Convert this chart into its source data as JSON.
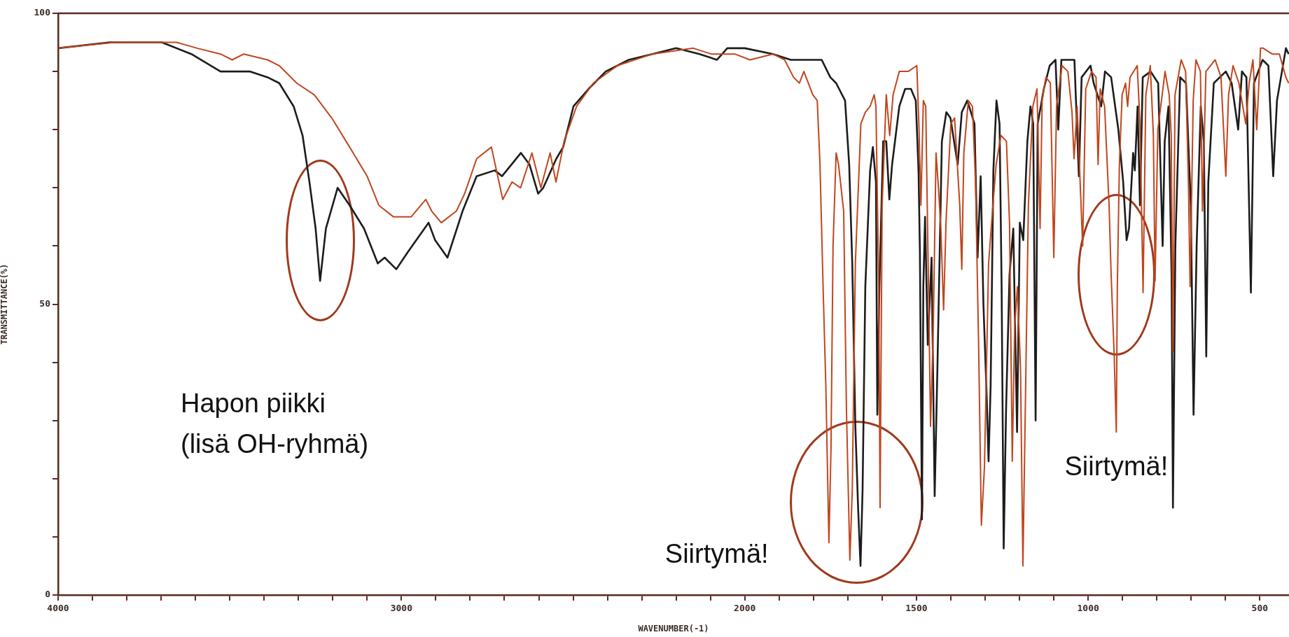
{
  "chart_data": {
    "type": "line",
    "xlabel": "WAVENUMBER(-1)",
    "ylabel": "TRANSMITTANCE(%)",
    "marker": "none",
    "line_style": "solid",
    "xlim": [
      4000,
      415
    ],
    "ylim": [
      0,
      100
    ],
    "xticks": [
      4000,
      {
        "value": 3900,
        "label": null
      },
      {
        "value": 3800,
        "label": null
      },
      {
        "value": 3700,
        "label": null
      },
      {
        "value": 3600,
        "label": null
      },
      {
        "value": 3500,
        "label": null
      },
      {
        "value": 3400,
        "label": null
      },
      {
        "value": 3300,
        "label": null
      },
      {
        "value": 3200,
        "label": null
      },
      {
        "value": 3100,
        "label": null
      },
      3000,
      {
        "value": 2900,
        "label": null
      },
      {
        "value": 2800,
        "label": null
      },
      {
        "value": 2700,
        "label": null
      },
      {
        "value": 2600,
        "label": null
      },
      {
        "value": 2500,
        "label": null
      },
      {
        "value": 2400,
        "label": null
      },
      {
        "value": 2300,
        "label": null
      },
      {
        "value": 2200,
        "label": null
      },
      {
        "value": 2100,
        "label": null
      },
      2000,
      {
        "value": 1900,
        "label": null
      },
      {
        "value": 1800,
        "label": null
      },
      {
        "value": 1700,
        "label": null
      },
      {
        "value": 1600,
        "label": null
      },
      1500,
      {
        "value": 1400,
        "label": null
      },
      {
        "value": 1300,
        "label": null
      },
      {
        "value": 1200,
        "label": null
      },
      {
        "value": 1100,
        "label": null
      },
      1000,
      {
        "value": 900,
        "label": null
      },
      {
        "value": 800,
        "label": null
      },
      {
        "value": 700,
        "label": null
      },
      {
        "value": 600,
        "label": null
      },
      500
    ],
    "yticks": [
      0,
      {
        "value": 10,
        "label": null
      },
      {
        "value": 20,
        "label": null
      },
      {
        "value": 30,
        "label": null
      },
      {
        "value": 40,
        "label": null
      },
      50,
      {
        "value": 60,
        "label": null
      },
      {
        "value": 70,
        "label": null
      },
      {
        "value": 80,
        "label": null
      },
      {
        "value": 90,
        "label": null
      },
      100
    ],
    "series": [
      {
        "color": "#c0461e",
        "x": [
          4000,
          3834,
          3698,
          3655,
          3595,
          3527,
          3493,
          3459,
          3390,
          3356,
          3305,
          3254,
          3203,
          3151,
          3100,
          3066,
          3023,
          2972,
          2929,
          2912,
          2884,
          2840,
          2816,
          2781,
          2738,
          2705,
          2678,
          2653,
          2620,
          2594,
          2567,
          2550,
          2526,
          2490,
          2441,
          2371,
          2269,
          2150,
          2098,
          2029,
          1985,
          1918,
          1884,
          1858,
          1841,
          1828,
          1815,
          1802,
          1789,
          1781,
          1772,
          1764,
          1755,
          1749,
          1743,
          1734,
          1727,
          1712,
          1704,
          1694,
          1687,
          1678,
          1662,
          1649,
          1635,
          1623,
          1618,
          1610,
          1606,
          1600,
          1588,
          1578,
          1568,
          1550,
          1524,
          1499,
          1493,
          1487,
          1480,
          1473,
          1465,
          1459,
          1451,
          1443,
          1436,
          1429,
          1421,
          1414,
          1400,
          1389,
          1374,
          1368,
          1362,
          1349,
          1337,
          1328,
          1319,
          1311,
          1302,
          1290,
          1276,
          1268,
          1254,
          1238,
          1229,
          1221,
          1214,
          1206,
          1197,
          1190,
          1183,
          1174,
          1161,
          1149,
          1140,
          1134,
          1123,
          1110,
          1100,
          1092,
          1076,
          1059,
          1047,
          1041,
          1032,
          1016,
          1007,
          990,
          977,
          971,
          965,
          952,
          939,
          933,
          924,
          918,
          915,
          909,
          901,
          891,
          885,
          878,
          857,
          849,
          840,
          832,
          819,
          810,
          805,
          797,
          776,
          764,
          758,
          753,
          747,
          729,
          716,
          708,
          703,
          694,
          686,
          673,
          667,
          657,
          630,
          613,
          599,
          591,
          578,
          561,
          541,
          531,
          520,
          509,
          498,
          490,
          464,
          443,
          424,
          416
        ],
        "values": [
          94,
          95,
          95,
          95,
          94,
          93,
          92,
          93,
          92,
          91,
          88,
          86,
          82,
          77,
          72,
          67,
          65,
          65,
          68,
          66,
          64,
          66,
          69,
          75,
          77,
          68,
          71,
          70,
          76,
          70,
          76,
          71,
          78,
          84,
          88,
          91,
          93,
          94,
          93,
          93,
          92,
          93,
          92,
          89,
          88,
          90,
          88,
          86,
          85,
          74,
          53,
          36,
          9,
          25,
          60,
          76,
          74,
          66,
          32,
          6,
          18,
          57,
          81,
          83,
          84,
          86,
          84,
          53,
          15,
          67,
          86,
          79,
          86,
          90,
          90,
          91,
          81,
          67,
          85,
          84,
          53,
          29,
          46,
          76,
          70,
          63,
          49,
          64,
          81,
          82,
          67,
          56,
          76,
          85,
          84,
          71,
          43,
          12,
          22,
          57,
          68,
          74,
          79,
          78,
          64,
          23,
          46,
          53,
          39,
          5,
          32,
          67,
          84,
          87,
          63,
          85,
          89,
          88,
          58,
          84,
          91,
          90,
          83,
          75,
          84,
          60,
          87,
          90,
          89,
          74,
          87,
          84,
          67,
          55,
          41,
          28,
          53,
          74,
          86,
          88,
          84,
          89,
          91,
          81,
          52,
          86,
          91,
          79,
          54,
          80,
          90,
          86,
          79,
          42,
          86,
          92,
          90,
          71,
          53,
          85,
          92,
          90,
          66,
          90,
          92,
          89,
          72,
          86,
          91,
          88,
          81,
          88,
          92,
          80,
          94,
          94,
          93,
          93,
          89,
          88
        ]
      },
      {
        "color": "#1c1c1c",
        "x": [
          4000,
          3850,
          3698,
          3612,
          3527,
          3442,
          3390,
          3356,
          3314,
          3288,
          3268,
          3250,
          3237,
          3220,
          3186,
          3151,
          3109,
          3069,
          3049,
          3015,
          2981,
          2921,
          2902,
          2866,
          2822,
          2781,
          2728,
          2707,
          2652,
          2627,
          2602,
          2587,
          2549,
          2529,
          2499,
          2455,
          2405,
          2338,
          2269,
          2200,
          2132,
          2081,
          2051,
          2000,
          1918,
          1866,
          1832,
          1824,
          1776,
          1751,
          1734,
          1708,
          1696,
          1687,
          1678,
          1670,
          1663,
          1657,
          1649,
          1635,
          1627,
          1618,
          1614,
          1608,
          1597,
          1588,
          1579,
          1571,
          1550,
          1533,
          1516,
          1502,
          1494,
          1490,
          1484,
          1480,
          1475,
          1467,
          1456,
          1447,
          1439,
          1426,
          1413,
          1401,
          1380,
          1368,
          1352,
          1331,
          1322,
          1313,
          1305,
          1296,
          1290,
          1284,
          1276,
          1267,
          1258,
          1252,
          1246,
          1239,
          1229,
          1218,
          1207,
          1199,
          1189,
          1177,
          1168,
          1160,
          1153,
          1147,
          1129,
          1112,
          1095,
          1087,
          1078,
          1040,
          1027,
          1019,
          993,
          984,
          962,
          951,
          933,
          912,
          898,
          888,
          881,
          869,
          864,
          856,
          849,
          841,
          818,
          796,
          783,
          777,
          766,
          757,
          753,
          746,
          732,
          715,
          701,
          693,
          684,
          672,
          663,
          656,
          650,
          634,
          599,
          582,
          563,
          552,
          539,
          526,
          517,
          492,
          475,
          461,
          450,
          424,
          416
        ],
        "values": [
          94,
          95,
          95,
          93,
          90,
          90,
          89,
          88,
          84,
          79,
          71,
          63,
          54,
          63,
          70,
          67,
          63,
          57,
          58,
          56,
          59,
          64,
          61,
          58,
          66,
          72,
          73,
          72,
          76,
          74,
          69,
          70,
          75,
          77,
          84,
          87,
          90,
          92,
          93,
          94,
          93,
          92,
          94,
          94,
          93,
          92,
          92,
          92,
          92,
          89,
          88,
          85,
          74,
          57,
          29,
          15,
          5,
          18,
          53,
          73,
          77,
          71,
          31,
          53,
          78,
          78,
          68,
          74,
          84,
          87,
          87,
          85,
          73,
          59,
          13,
          53,
          65,
          43,
          58,
          17,
          39,
          78,
          83,
          82,
          74,
          83,
          85,
          81,
          58,
          72,
          50,
          35,
          23,
          36,
          73,
          85,
          81,
          53,
          8,
          32,
          55,
          63,
          28,
          64,
          61,
          78,
          84,
          81,
          30,
          81,
          87,
          91,
          92,
          80,
          92,
          92,
          72,
          89,
          91,
          88,
          84,
          90,
          89,
          80,
          71,
          61,
          63,
          76,
          73,
          84,
          67,
          89,
          90,
          88,
          60,
          78,
          84,
          55,
          15,
          60,
          89,
          88,
          67,
          31,
          60,
          84,
          78,
          41,
          71,
          88,
          90,
          88,
          80,
          90,
          89,
          52,
          88,
          92,
          91,
          72,
          85,
          94,
          93
        ]
      }
    ],
    "annotations": [
      "Hapon piikki\n(lisä OH-ryhmä)",
      "Siirtymä!",
      "Siirtymä!"
    ]
  }
}
